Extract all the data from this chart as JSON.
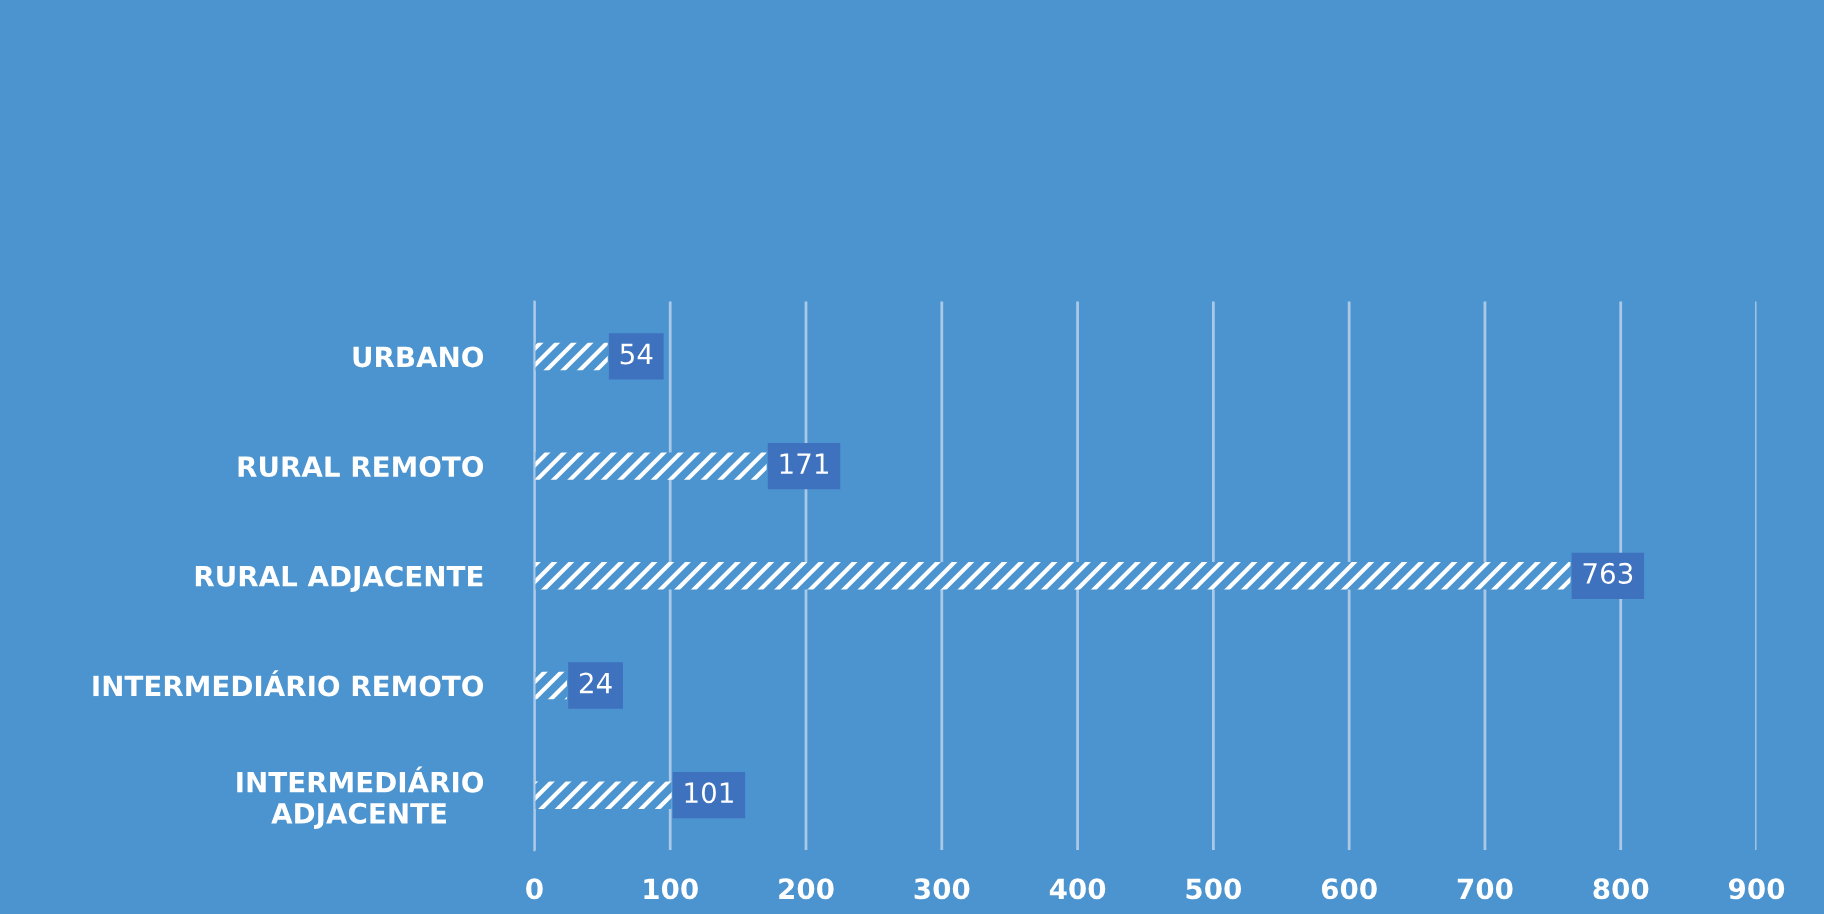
{
  "chart_data": {
    "type": "bar",
    "orientation": "horizontal",
    "categories": [
      "URBANO",
      "RURAL REMOTO",
      "RURAL ADJACENTE",
      "INTERMEDIÁRIO REMOTO",
      "INTERMEDIÁRIO\nADJACENTE"
    ],
    "values": [
      54,
      171,
      763,
      24,
      101
    ],
    "color": "#ffffff",
    "xlim": [
      0,
      900
    ],
    "xticks": [
      0,
      100,
      200,
      300,
      400,
      500,
      600,
      700,
      800,
      900
    ],
    "grid": "x",
    "data_labels": true
  }
}
